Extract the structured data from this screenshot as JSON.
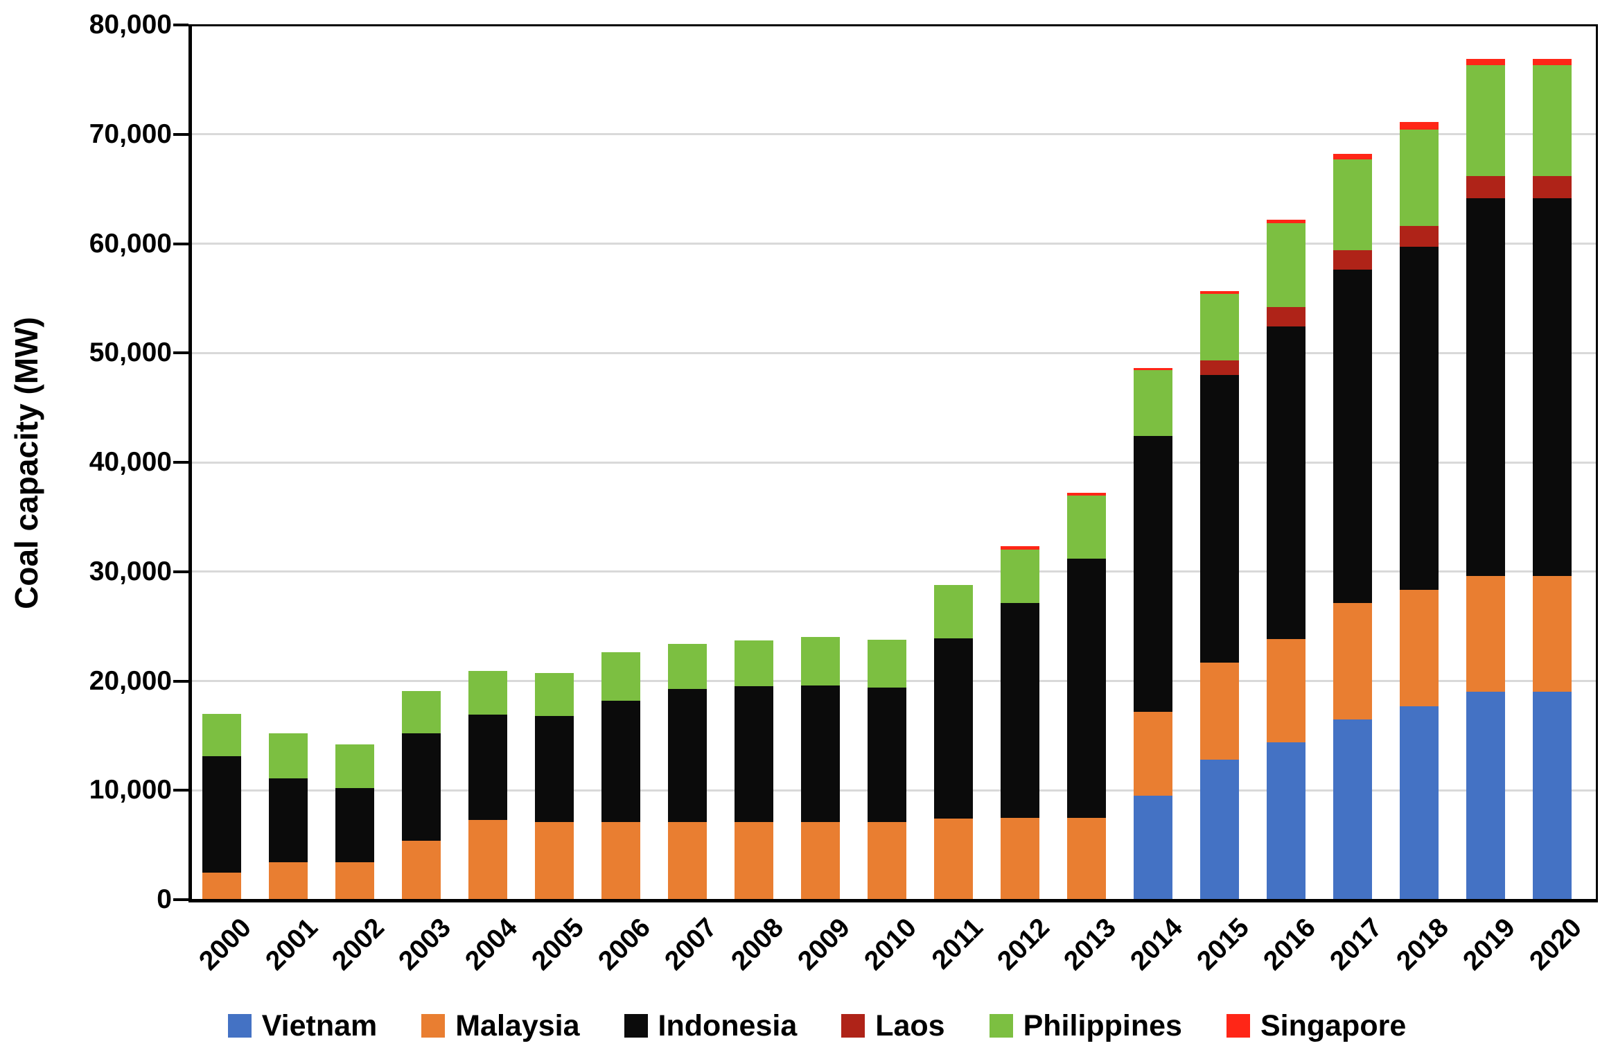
{
  "chart_data": {
    "type": "bar",
    "stacked": true,
    "title": "",
    "ylabel": "Coal capacity (MW)",
    "xlabel": "",
    "ylim": [
      0,
      80000
    ],
    "ytick_step": 10000,
    "ytick_labels": [
      "0",
      "10,000",
      "20,000",
      "30,000",
      "40,000",
      "50,000",
      "60,000",
      "70,000",
      "80,000"
    ],
    "grid": "horizontal-light-gray",
    "legend_position": "bottom-center",
    "categories": [
      "2000",
      "2001",
      "2002",
      "2003",
      "2004",
      "2005",
      "2006",
      "2007",
      "2008",
      "2009",
      "2010",
      "2011",
      "2012",
      "2013",
      "2014",
      "2015",
      "2016",
      "2017",
      "2018",
      "2019",
      "2020"
    ],
    "series": [
      {
        "name": "Vietnam",
        "color": "#4472C4",
        "values": [
          0,
          0,
          0,
          0,
          0,
          0,
          0,
          0,
          0,
          0,
          0,
          0,
          0,
          0,
          9500,
          12800,
          14400,
          16500,
          17700,
          19000,
          19000
        ]
      },
      {
        "name": "Malaysia",
        "color": "#E97E31",
        "values": [
          2500,
          3400,
          3400,
          5400,
          7300,
          7100,
          7100,
          7100,
          7100,
          7100,
          7100,
          7400,
          7500,
          7500,
          7700,
          8900,
          9450,
          10600,
          10650,
          10600,
          10600
        ]
      },
      {
        "name": "Indonesia",
        "color": "#0B0B0B",
        "values": [
          10600,
          7700,
          6800,
          9800,
          9600,
          9700,
          11100,
          12200,
          12400,
          12500,
          12300,
          16500,
          19600,
          23700,
          25200,
          26300,
          28550,
          30500,
          31350,
          34550,
          34550
        ]
      },
      {
        "name": "Laos",
        "color": "#AF2318",
        "values": [
          0,
          0,
          0,
          0,
          0,
          0,
          0,
          0,
          0,
          0,
          0,
          0,
          0,
          0,
          0,
          1300,
          1800,
          1800,
          1900,
          2000,
          2000
        ]
      },
      {
        "name": "Philippines",
        "color": "#7CBF41",
        "values": [
          3900,
          4100,
          4000,
          3900,
          4000,
          3900,
          4400,
          4100,
          4200,
          4400,
          4400,
          4900,
          4900,
          5750,
          6050,
          6100,
          7700,
          8300,
          8800,
          10200,
          10200
        ]
      },
      {
        "name": "Singapore",
        "color": "#FF2617",
        "values": [
          0,
          0,
          0,
          0,
          0,
          0,
          0,
          0,
          0,
          0,
          0,
          0,
          300,
          250,
          200,
          250,
          300,
          500,
          700,
          550,
          550
        ]
      }
    ],
    "totals": [
      17000,
      15200,
      14200,
      19100,
      20900,
      20700,
      22600,
      23400,
      23700,
      24000,
      23800,
      28800,
      32300,
      37200,
      48650,
      55650,
      62200,
      68200,
      71100,
      76900,
      76900
    ]
  }
}
